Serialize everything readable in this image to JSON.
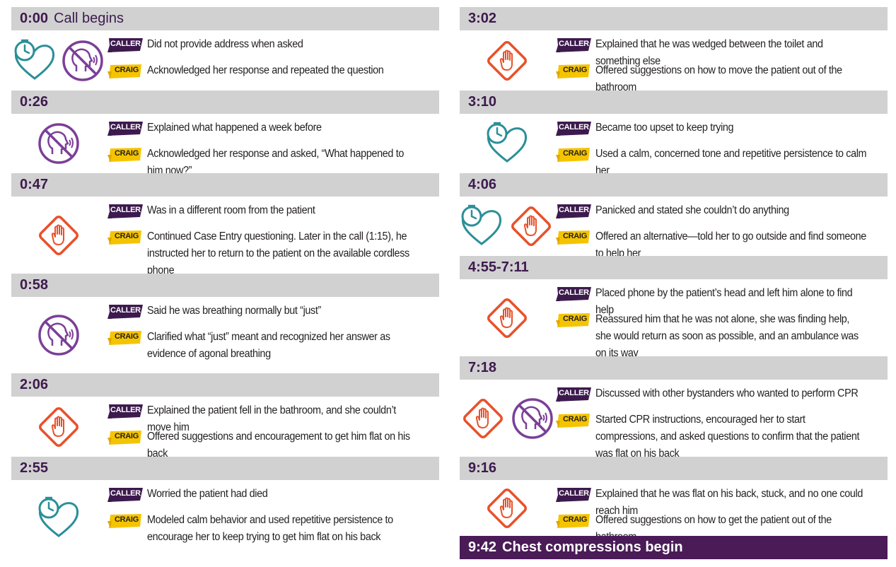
{
  "left": [
    {
      "time": "0:00",
      "suffix": "Call begins",
      "height": 118,
      "icons": [
        "clock-heart-icon",
        "no-speaking-icon"
      ],
      "caller": "Did not provide address when asked",
      "craig": "Acknowledged her response and repeated the question"
    },
    {
      "time": "0:26",
      "height": 117,
      "icons": [
        "no-speaking-icon"
      ],
      "caller": "Explained what happened a week before",
      "craig": "Acknowledged her response and asked, “What happened to him now?”"
    },
    {
      "time": "0:47",
      "height": 142,
      "icons": [
        "stop-hand-icon"
      ],
      "caller": "Was in a different room from the patient",
      "craig": "Continued Case Entry questioning. Later in the call (1:15), he instructed her to return to the patient on the available cordless phone"
    },
    {
      "time": "0:58",
      "height": 141,
      "icons": [
        "no-speaking-icon"
      ],
      "caller": "Said he was breathing normally but “just”",
      "craig": "Clarified what “just” meant and recognized her answer as evidence of agonal breathing"
    },
    {
      "time": "2:06",
      "height": 118,
      "icons": [
        "stop-hand-icon"
      ],
      "caller": "Explained the patient fell in the bathroom, and she couldn’t move him",
      "craig": "Offered suggestions and encouragement to get him flat on his back"
    },
    {
      "time": "2:55",
      "height": 140,
      "icons": [
        "clock-heart-icon"
      ],
      "caller": "Worried the patient had died",
      "craig": "Modeled calm behavior and used repetitive persistence to encourage her to keep trying to get him flat on his back"
    }
  ],
  "right": [
    {
      "time": "3:02",
      "height": 118,
      "icons": [
        "stop-hand-icon"
      ],
      "caller": "Explained that he was wedged between the toilet and something else",
      "craig": "Offered suggestions on how to move the patient out of the bathroom"
    },
    {
      "time": "3:10",
      "height": 117,
      "icons": [
        "clock-heart-icon"
      ],
      "caller": "Became too upset to keep trying",
      "craig": "Used a calm, concerned tone and repetitive persistence to calm her"
    },
    {
      "time": "4:06",
      "height": 117,
      "icons": [
        "clock-heart-icon",
        "stop-hand-icon"
      ],
      "caller": "Panicked and stated she couldn’t do anything",
      "craig": "Offered an alternative—told her to go outside and find someone to help her"
    },
    {
      "time": "4:55-7:11",
      "height": 142,
      "icons": [
        "stop-hand-icon"
      ],
      "caller": "Placed phone by the patient’s head and left him alone to find help",
      "craig": "Reassured him that he was not alone, she was finding help, she would return as soon as possible, and an ambulance was on its way"
    },
    {
      "time": "7:18",
      "height": 142,
      "icons": [
        "stop-hand-icon",
        "no-speaking-icon"
      ],
      "caller": "Discussed with other bystanders who wanted to perform CPR",
      "craig": "Started CPR instructions, encouraged her to start compressions, and asked questions to confirm that the patient was flat on his back"
    },
    {
      "time": "9:16",
      "height": 112,
      "icons": [
        "stop-hand-icon"
      ],
      "caller": "Explained that he was flat on his back, stuck, and no one could reach him",
      "craig": "Offered suggestions on how to get the patient out of the bathroom"
    }
  ],
  "tags": {
    "caller": "CALLER",
    "craig": "CRAIG"
  },
  "final": {
    "time": "9:42",
    "suffix": "Chest compressions begin"
  },
  "colors": {
    "purple": "#7b3f98",
    "teal": "#2b8f98",
    "orange": "#e8512a",
    "dark_purple": "#4a1b57",
    "yellow": "#f5c400",
    "bar_gray": "#d1d1d1"
  }
}
